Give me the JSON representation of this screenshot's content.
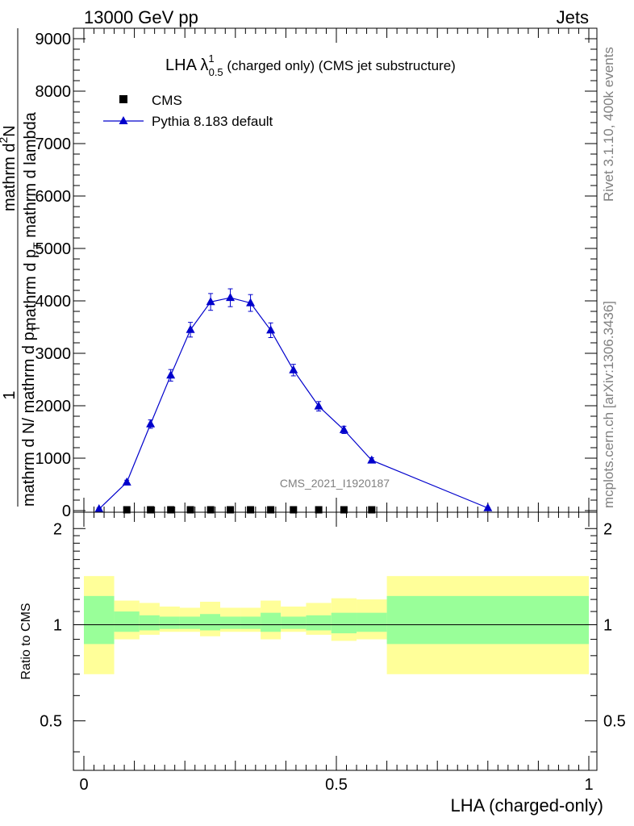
{
  "header": {
    "energy_label": "13000 GeV pp",
    "category_label": "Jets"
  },
  "side": {
    "rivet_label": "Rivet 3.1.10,  400k events",
    "mcplots_label": "mcplots.cern.ch [arXiv:1306.3436]"
  },
  "chart_data": [
    {
      "type": "line",
      "title_main": "LHA λ",
      "title_sup": "1",
      "title_sub": "0.5",
      "title_rest": " (charged only) (CMS jet substructure)",
      "analysis_label": "CMS_2021_I1920187",
      "ylabel": "1 / mathrm d N / mathrm d p_T mathrm d^2N / mathrm d p_T mathrm d lambda",
      "ylabel_parts": {
        "numerator_one": "1",
        "denominator_one": "mathrm d N/ mathrm d p",
        "sub_one": "T",
        "numerator_two": "mathrm d",
        "sup_two": "2",
        "numerator_two_end": "N",
        "denominator_two": "mathrm d p",
        "sub_two": "T",
        "denominator_two_end": " mathrm d lambda"
      },
      "xlim": [
        0,
        1
      ],
      "ylim": [
        0,
        9000
      ],
      "y_ticks": [
        0,
        1000,
        2000,
        3000,
        4000,
        5000,
        6000,
        7000,
        8000,
        9000
      ],
      "y_tick_labels": [
        "0",
        "1000",
        "2000",
        "3000",
        "4000",
        "5000",
        "6000",
        "7000",
        "8000",
        "9000"
      ],
      "legend_position": "top-left",
      "series": [
        {
          "name": "CMS",
          "marker": "square",
          "color": "#000000",
          "x": [
            0.085,
            0.132,
            0.172,
            0.211,
            0.251,
            0.29,
            0.33,
            0.37,
            0.415,
            0.465,
            0.515,
            0.57
          ],
          "values": [
            0,
            0,
            0,
            0,
            0,
            0,
            0,
            0,
            0,
            0,
            0,
            0
          ]
        },
        {
          "name": "Pythia 8.183 default",
          "marker": "triangle",
          "color": "#0000cc",
          "x": [
            0.03,
            0.085,
            0.132,
            0.172,
            0.211,
            0.251,
            0.29,
            0.33,
            0.37,
            0.415,
            0.465,
            0.515,
            0.57,
            0.8
          ],
          "values": [
            30,
            540,
            1650,
            2580,
            3450,
            3980,
            4060,
            3960,
            3440,
            2680,
            1990,
            1540,
            960,
            50
          ],
          "errors": [
            20,
            40,
            80,
            110,
            140,
            160,
            170,
            160,
            140,
            110,
            90,
            70,
            50,
            10
          ]
        }
      ]
    },
    {
      "type": "area",
      "ylabel": "Ratio to CMS",
      "xlabel": "LHA (charged-only)",
      "xlim": [
        0,
        1
      ],
      "ylim": [
        0.35,
        2.25
      ],
      "y_ticks": [
        0.5,
        1,
        2
      ],
      "y_tick_labels": [
        "0.5",
        "1",
        "2"
      ],
      "x_ticks": [
        0,
        0.5,
        1
      ],
      "x_tick_labels": [
        "0",
        "0.5",
        "1"
      ],
      "reference": 1,
      "bands": {
        "outer_color": "#ffff99",
        "inner_color": "#99ff99",
        "bins": [
          {
            "lo": 0.0,
            "hi": 0.06,
            "outer": [
              0.7,
              1.42
            ],
            "inner": [
              0.87,
              1.23
            ]
          },
          {
            "lo": 0.06,
            "hi": 0.11,
            "outer": [
              0.9,
              1.19
            ],
            "inner": [
              0.95,
              1.1
            ]
          },
          {
            "lo": 0.11,
            "hi": 0.15,
            "outer": [
              0.93,
              1.17
            ],
            "inner": [
              0.96,
              1.07
            ]
          },
          {
            "lo": 0.15,
            "hi": 0.19,
            "outer": [
              0.95,
              1.14
            ],
            "inner": [
              0.97,
              1.06
            ]
          },
          {
            "lo": 0.19,
            "hi": 0.23,
            "outer": [
              0.95,
              1.13
            ],
            "inner": [
              0.97,
              1.06
            ]
          },
          {
            "lo": 0.23,
            "hi": 0.27,
            "outer": [
              0.92,
              1.18
            ],
            "inner": [
              0.96,
              1.08
            ]
          },
          {
            "lo": 0.27,
            "hi": 0.31,
            "outer": [
              0.95,
              1.13
            ],
            "inner": [
              0.97,
              1.06
            ]
          },
          {
            "lo": 0.31,
            "hi": 0.35,
            "outer": [
              0.95,
              1.13
            ],
            "inner": [
              0.97,
              1.06
            ]
          },
          {
            "lo": 0.35,
            "hi": 0.39,
            "outer": [
              0.9,
              1.19
            ],
            "inner": [
              0.95,
              1.09
            ]
          },
          {
            "lo": 0.39,
            "hi": 0.44,
            "outer": [
              0.95,
              1.14
            ],
            "inner": [
              0.97,
              1.06
            ]
          },
          {
            "lo": 0.44,
            "hi": 0.49,
            "outer": [
              0.93,
              1.17
            ],
            "inner": [
              0.96,
              1.07
            ]
          },
          {
            "lo": 0.49,
            "hi": 0.54,
            "outer": [
              0.89,
              1.21
            ],
            "inner": [
              0.94,
              1.09
            ]
          },
          {
            "lo": 0.54,
            "hi": 0.6,
            "outer": [
              0.9,
              1.2
            ],
            "inner": [
              0.95,
              1.09
            ]
          },
          {
            "lo": 0.6,
            "hi": 1.0,
            "outer": [
              0.7,
              1.42
            ],
            "inner": [
              0.87,
              1.23
            ]
          }
        ]
      }
    }
  ]
}
